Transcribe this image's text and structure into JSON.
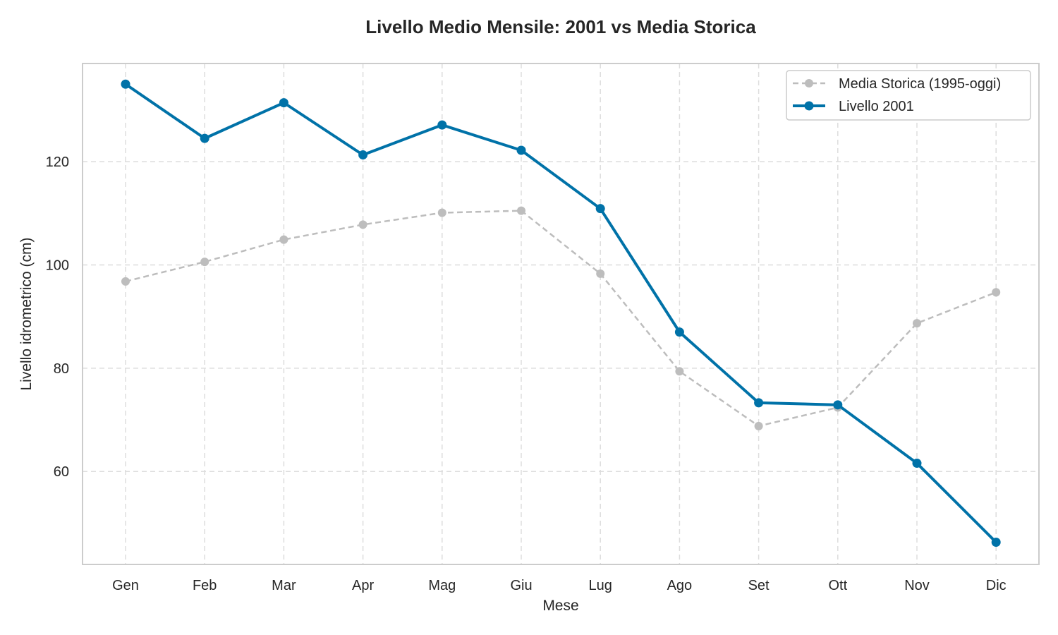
{
  "chart_data": {
    "type": "line",
    "title": "Livello Medio Mensile: 2001 vs Media Storica",
    "xlabel": "Mese",
    "ylabel": "Livello idrometrico (cm)",
    "categories": [
      "Gen",
      "Feb",
      "Mar",
      "Apr",
      "Mag",
      "Giu",
      "Lug",
      "Ago",
      "Set",
      "Ott",
      "Nov",
      "Dic"
    ],
    "ylim": [
      42,
      139
    ],
    "yticks": [
      60,
      80,
      100,
      120
    ],
    "grid": true,
    "legend_position": "top-right",
    "series": [
      {
        "name": "Media Storica (1995-oggi)",
        "color": "#bdbdbd",
        "style": "dashed",
        "values": [
          96.8,
          100.6,
          104.9,
          107.8,
          110.1,
          110.5,
          98.3,
          79.4,
          68.8,
          72.4,
          88.7,
          94.7
        ]
      },
      {
        "name": "Livello 2001",
        "color": "#0072a8",
        "style": "solid",
        "values": [
          135.0,
          124.5,
          131.4,
          121.3,
          127.1,
          122.2,
          110.9,
          87.0,
          73.3,
          72.9,
          61.6,
          46.3
        ]
      }
    ]
  }
}
